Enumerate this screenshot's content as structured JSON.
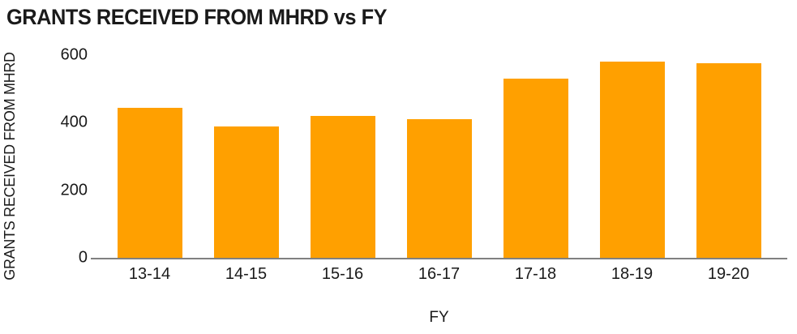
{
  "chart_data": {
    "type": "bar",
    "title": "GRANTS RECEIVED FROM MHRD vs FY",
    "xlabel": "FY",
    "ylabel": "GRANTS RECEIVED FROM MHRD",
    "categories": [
      "13-14",
      "14-15",
      "15-16",
      "16-17",
      "17-18",
      "18-19",
      "19-20"
    ],
    "values": [
      445,
      390,
      420,
      410,
      530,
      580,
      575
    ],
    "ylim": [
      0,
      600
    ],
    "y_ticks": [
      0,
      200,
      400,
      600
    ],
    "grid": false,
    "legend": false,
    "colors": {
      "bar": "#FFA000",
      "axis": "#808080",
      "text": "#1a1a1a",
      "background": "#ffffff"
    }
  }
}
